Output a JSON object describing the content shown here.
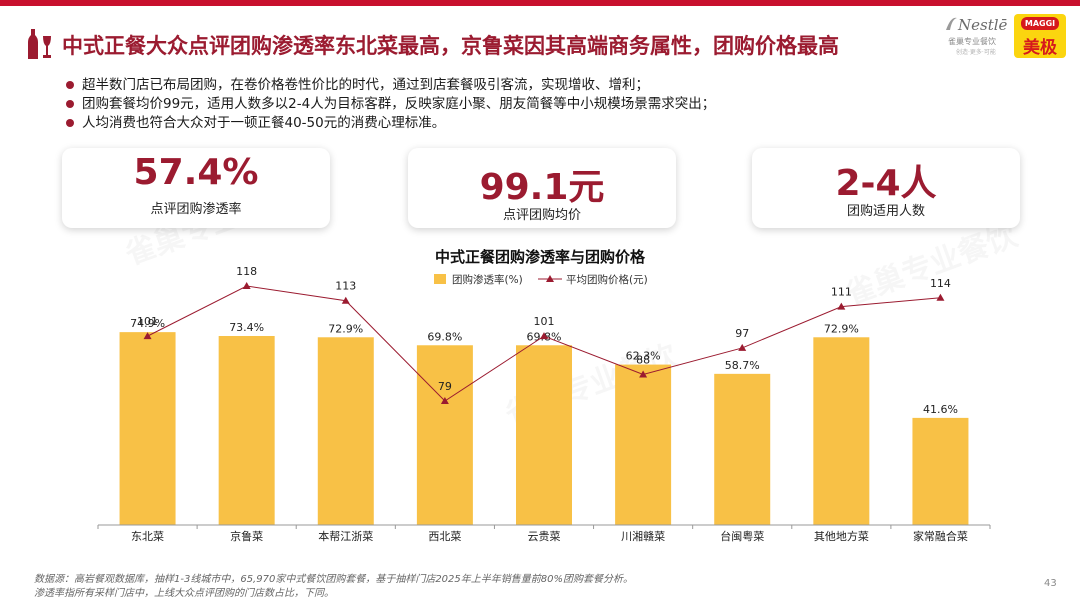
{
  "page": {
    "title": "中式正餐大众点评团购渗透率东北菜最高，京鲁菜因其高端商务属性，团购价格最高",
    "page_number": "43",
    "watermark": "雀巢专业餐饮"
  },
  "logos": {
    "nestle_word": "Nestlē",
    "nestle_sub": "雀巢专业餐饮",
    "nestle_tagline": "创造·更多·可能",
    "maggi_word": "MAGGI",
    "maggi_cn": "美极"
  },
  "bullets": [
    "超半数门店已布局团购，在卷价格卷性价比的时代，通过到店套餐吸引客流，实现增收、增利；",
    "团购套餐均价99元，适用人数多以2-4人为目标客群，反映家庭小聚、朋友简餐等中小规模场景需求突出；",
    "人均消费也符合大众对于一顿正餐40-50元的消费心理标准。"
  ],
  "kpis": [
    {
      "value": "57.4%",
      "label": "点评团购渗透率"
    },
    {
      "value": "99.1元",
      "label": "点评团购均价"
    },
    {
      "value": "2-4人",
      "label": "团购适用人数"
    }
  ],
  "chart_data": {
    "type": "bar",
    "title": "中式正餐团购渗透率与团购价格",
    "categories": [
      "东北菜",
      "京鲁菜",
      "本帮江浙菜",
      "西北菜",
      "云贵菜",
      "川湘赣菜",
      "台闽粤菜",
      "其他地方菜",
      "家常融合菜"
    ],
    "series": [
      {
        "name": "团购渗透率(%)",
        "type": "bar",
        "values": [
          74.9,
          73.4,
          72.9,
          69.8,
          69.8,
          62.3,
          58.7,
          72.9,
          41.6
        ],
        "labels": [
          "74.9%",
          "73.4%",
          "72.9%",
          "69.8%",
          "69.8%",
          "62.3%",
          "58.7%",
          "72.9%",
          "41.6%"
        ],
        "color": "#f8c146"
      },
      {
        "name": "平均团购价格(元)",
        "type": "line",
        "values": [
          101,
          118,
          113,
          79,
          101,
          88,
          97,
          111,
          114
        ],
        "labels": [
          "101",
          "118",
          "113",
          "79",
          "101",
          "88",
          "97",
          "111",
          "114"
        ],
        "color": "#9b1b30"
      }
    ],
    "ylim_bar": [
      0,
      100
    ],
    "ylim_line": [
      0,
      130
    ],
    "legend": "top-center",
    "grid": false
  },
  "footnotes": [
    "数据源：高岩餐观数据库，抽样1-3线城市中，65,970家中式餐饮团购套餐，基于抽样门店2025年上半年销售量前80%团购套餐分析。",
    "渗透率指所有采样门店中，上线大众点评团购的门店数占比，下同。"
  ],
  "colors": {
    "brand": "#9b1b30",
    "accent_red": "#c8102e",
    "bar": "#f8c146"
  }
}
